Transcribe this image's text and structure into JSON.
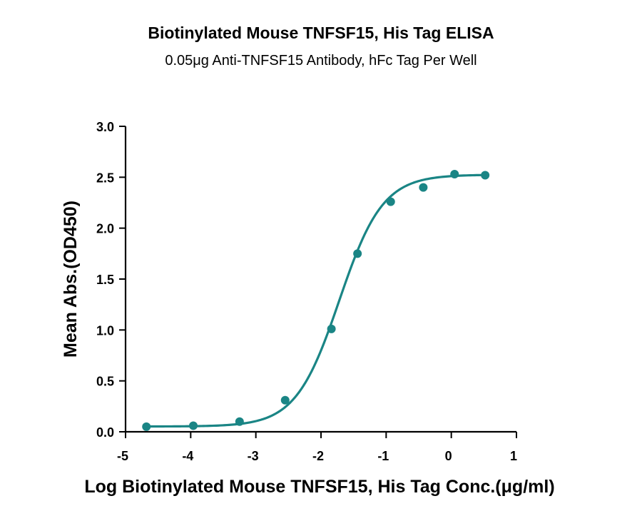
{
  "title": "Biotinylated Mouse TNFSF15, His Tag ELISA",
  "subtitle": "0.05μg Anti-TNFSF15 Antibody, hFc Tag Per Well",
  "chart_data": {
    "type": "scatter",
    "xlabel": "Log Biotinylated Mouse TNFSF15, His Tag Conc.(μg/ml)",
    "ylabel": "Mean Abs.(OD450)",
    "xlim": [
      -5,
      1
    ],
    "ylim": [
      0,
      3.0
    ],
    "x_ticks": [
      -5,
      -4,
      -3,
      -2,
      -1,
      0,
      1
    ],
    "x_tick_labels": [
      "-5",
      "-4",
      "-3",
      "-2",
      "-1",
      "0",
      "1"
    ],
    "y_ticks": [
      0,
      0.5,
      1.0,
      1.5,
      2.0,
      2.5,
      3.0
    ],
    "y_tick_labels": [
      "0.0",
      "0.5",
      "1.0",
      "1.5",
      "2.0",
      "2.5",
      "3.0"
    ],
    "grid": false,
    "legend": "none",
    "series": [
      {
        "color": "#1a8585",
        "x": [
          -4.68,
          -3.96,
          -3.25,
          -2.55,
          -1.84,
          -1.44,
          -0.93,
          -0.43,
          0.05,
          0.52
        ],
        "y": [
          0.05,
          0.06,
          0.1,
          0.31,
          1.01,
          1.75,
          2.26,
          2.4,
          2.53,
          2.52
        ],
        "fit": {
          "model": "4PL",
          "bottom": 0.052,
          "top": 2.525,
          "logEC50": -1.72,
          "hill": 1.3
        }
      }
    ]
  }
}
